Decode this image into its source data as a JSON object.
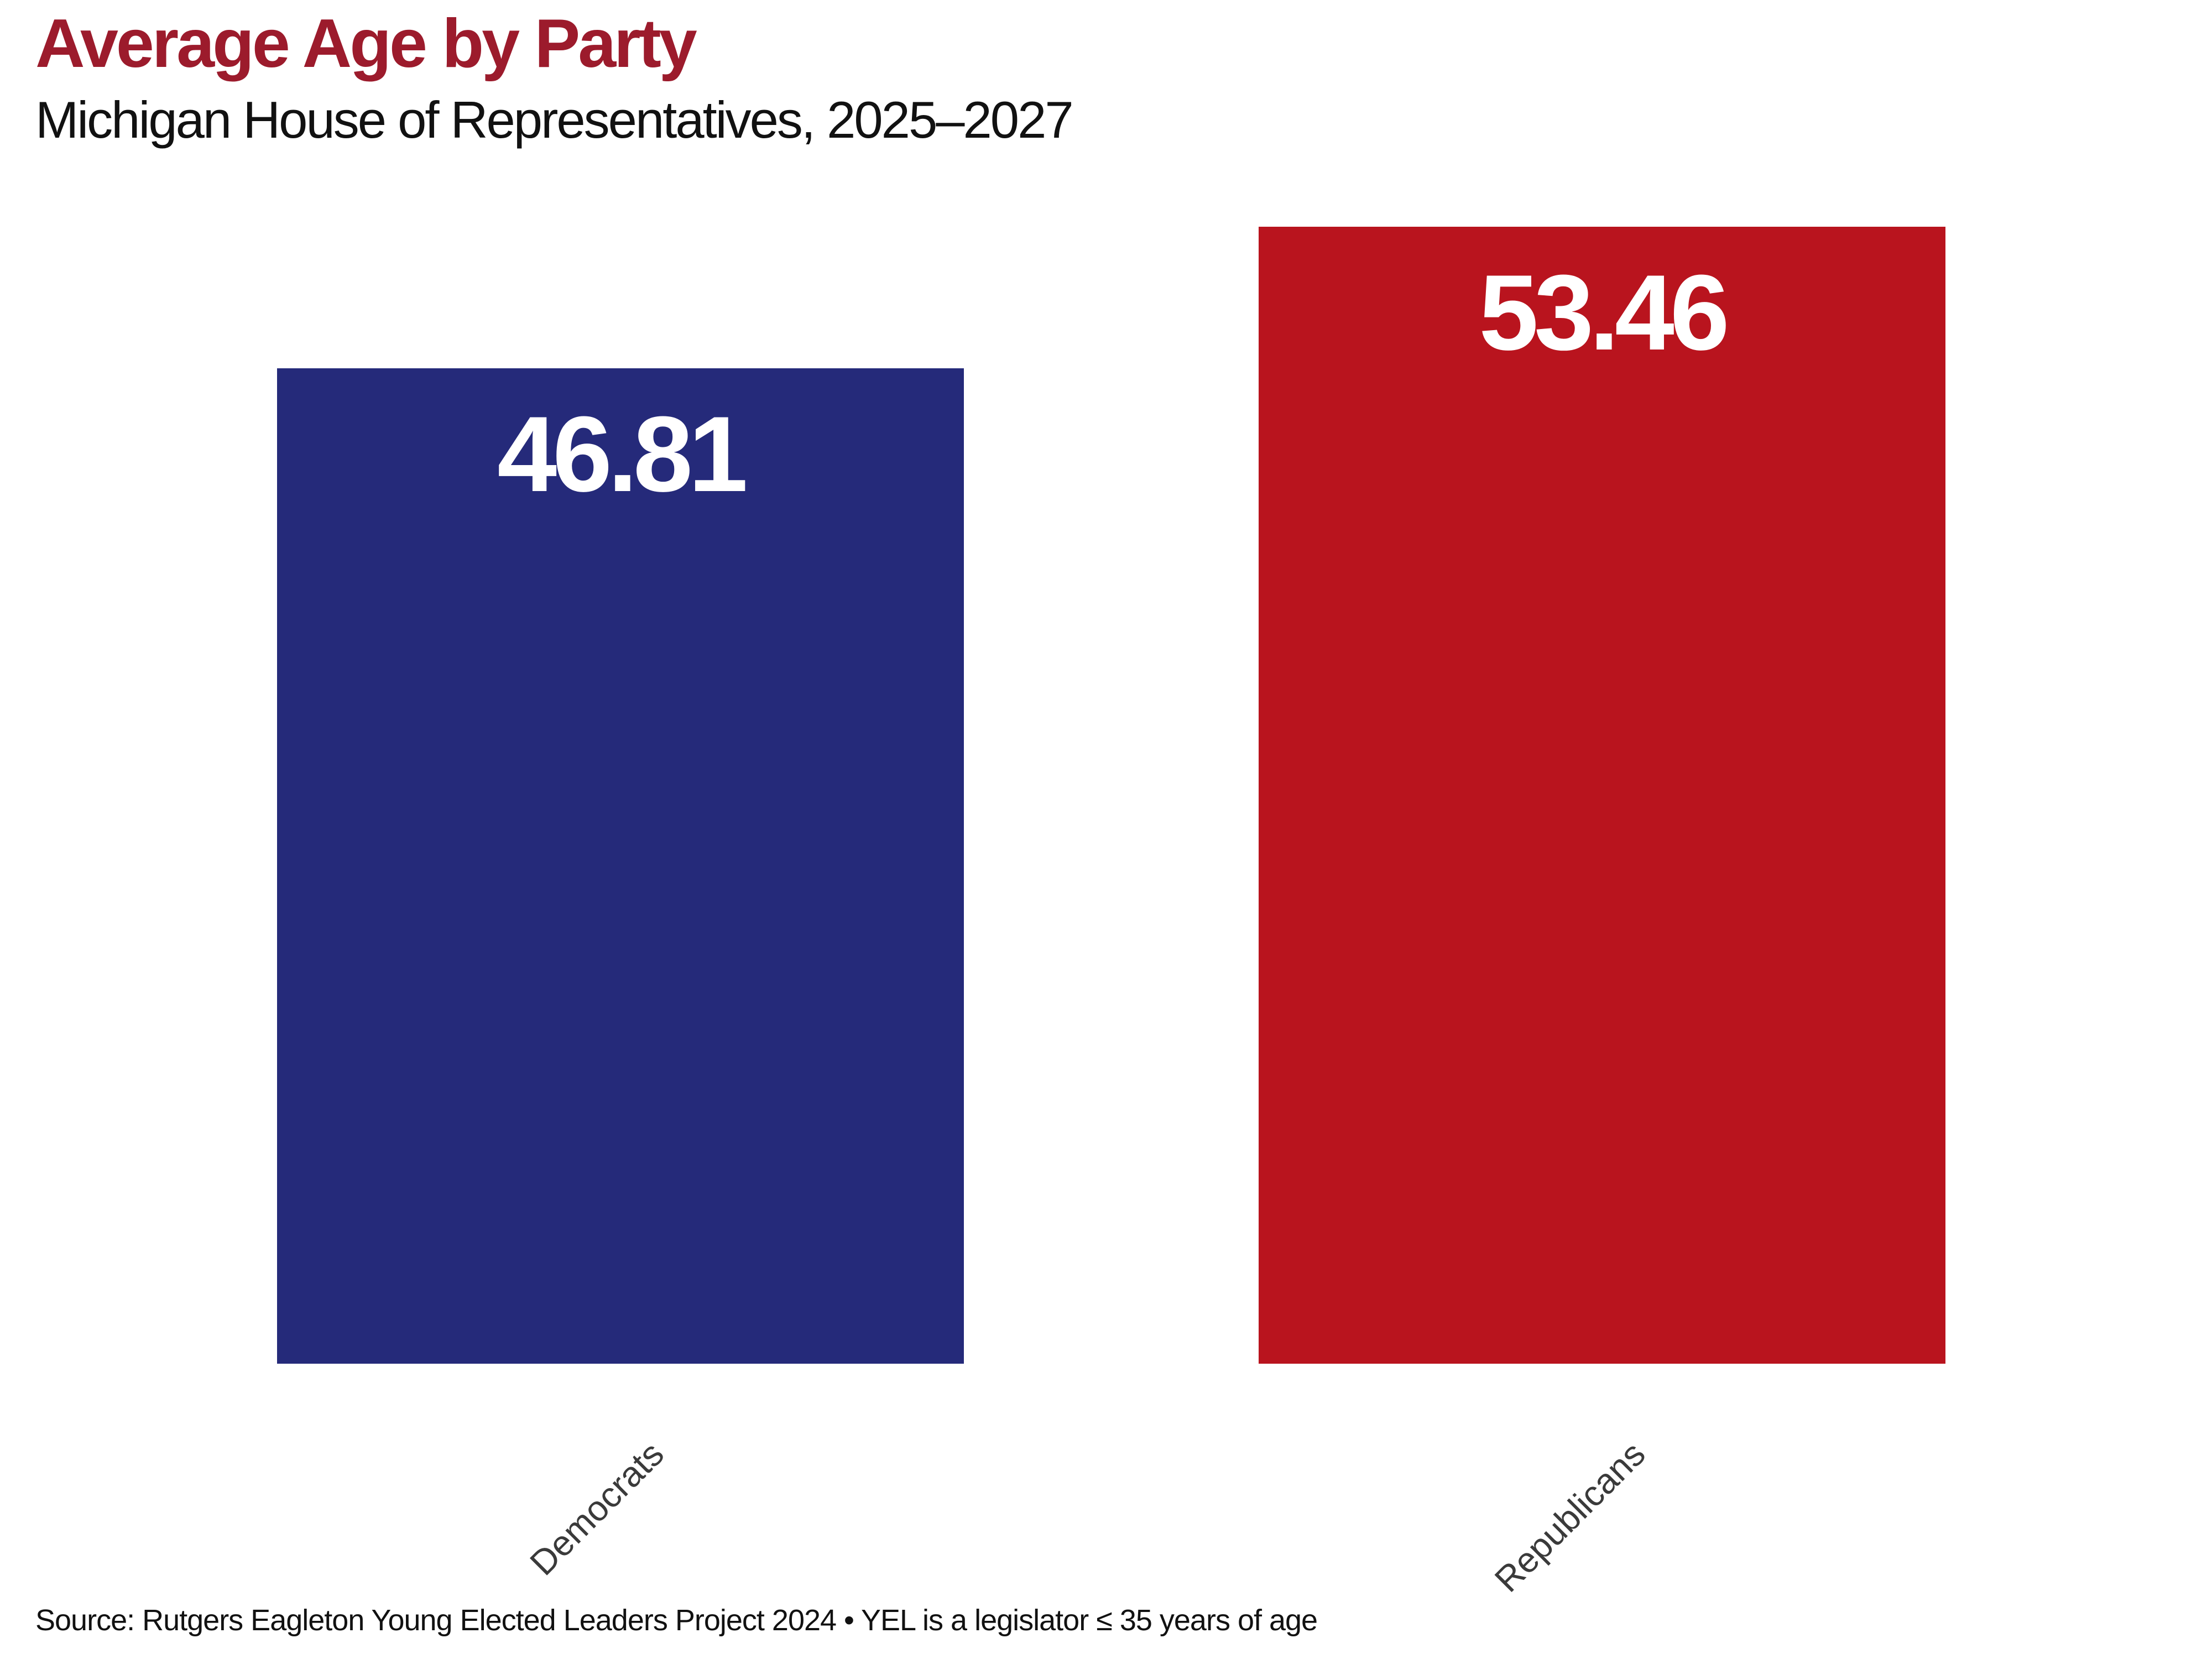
{
  "header": {
    "title": "Average Age by Party",
    "subtitle": "Michigan House of Representatives, 2025–2027"
  },
  "footer": {
    "source": "Source: Rutgers Eagleton Young Elected Leaders Project 2024 • YEL is a legislator ≤ 35 years of age"
  },
  "colors": {
    "title_text": "#9C1B2C",
    "subtitle_text": "#111111",
    "democrats_bar": "#252A7A",
    "republicans_bar": "#B9141E",
    "value_label_text": "#FFFFFF",
    "category_label_text": "#3A3A3A",
    "background": "#FFFFFF"
  },
  "chart_data": {
    "type": "bar",
    "title": "Average Age by Party",
    "subtitle": "Michigan House of Representatives, 2025–2027",
    "categories": [
      "Democrats",
      "Republicans"
    ],
    "values": [
      46.81,
      53.46
    ],
    "value_labels": [
      "46.81",
      "53.46"
    ],
    "bar_colors": [
      "#252A7A",
      "#B9141E"
    ],
    "xlabel": "",
    "ylabel": "",
    "ylim": [
      0,
      56
    ],
    "grid": false,
    "legend": false,
    "axis_lines": false,
    "value_label_position": "inside-top",
    "category_label_rotation_deg": 45,
    "source": "Source: Rutgers Eagleton Young Elected Leaders Project 2024 • YEL is a legislator ≤ 35 years of age"
  }
}
